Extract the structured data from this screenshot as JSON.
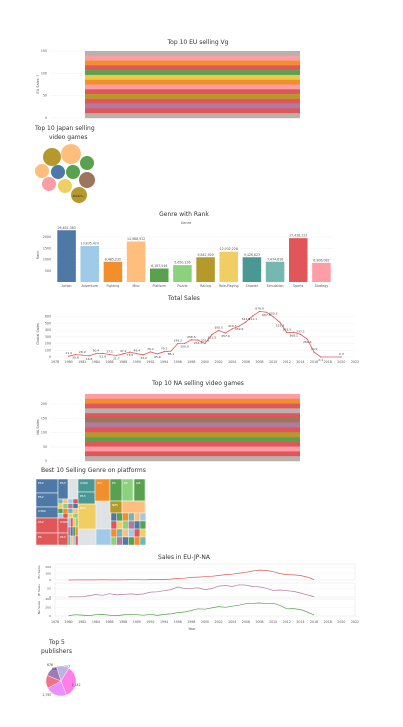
{
  "colors": {
    "blue": "#4e79a7",
    "orange": "#f28e2b",
    "red": "#e15759",
    "teal": "#76b7b2",
    "green": "#59a14f",
    "yellow": "#edc948",
    "purple": "#b07aa1",
    "pink": "#ff9da7",
    "brown": "#9c755f",
    "gray": "#bab0ac",
    "lightblue": "#a0cbe8",
    "lightorange": "#ffbe7d",
    "olive": "#b6992d",
    "lightgreen": "#8cd17d",
    "gold": "#f1ce63",
    "darkteal": "#499894"
  },
  "eu_chart": {
    "title": "Top 10 EU selling Vg",
    "ylabel": "EU Sales ↑",
    "ticks": [
      "150",
      "100",
      "50",
      "0"
    ],
    "stripe_colors": [
      "#bab0ac",
      "#ff9da7",
      "#f28e2b",
      "#e15759",
      "#59a14f",
      "#edc948",
      "#f28e2b",
      "#ff9da7",
      "#e15759",
      "#b6992d",
      "#e15759",
      "#b07aa1",
      "#e15759",
      "#bab0ac"
    ]
  },
  "japan_chart": {
    "title_line1": "Top 10 Japan selling",
    "title_line2": "video games",
    "bubble_label": "Pokém..."
  },
  "chart_data": [
    {
      "type": "bar",
      "title": "Genre with Rank",
      "subtitle": "Genre",
      "ylabel": "Rank",
      "ylim": [
        0,
        2400
      ],
      "ticks": [
        "2000",
        "1500",
        "1000",
        "500"
      ],
      "categories": [
        "Action",
        "Adventure",
        "Fighting",
        "Misc",
        "Platform",
        "Puzzle",
        "Racing",
        "Role-Playing",
        "Shooter",
        "Simulation",
        "Sports",
        "Strategy"
      ],
      "values": [
        2300,
        1600,
        900,
        1800,
        600,
        750,
        1100,
        1350,
        1100,
        900,
        1950,
        850
      ],
      "value_labels": [
        "26,461,360",
        "13,835,424",
        "6,485,232",
        "14,988,912",
        "6,187,546",
        "5,650,136",
        "9,842,920",
        "12,032,228",
        "9,426,823",
        "7,474,616",
        "17,428,122",
        "6,906,082"
      ],
      "colors": [
        "#4e79a7",
        "#a0cbe8",
        "#f28e2b",
        "#ffbe7d",
        "#59a14f",
        "#8cd17d",
        "#b6992d",
        "#f1ce63",
        "#499894",
        "#76b7b2",
        "#e15759",
        "#ff9da7"
      ]
    },
    {
      "type": "line",
      "title": "Total Sales",
      "ylabel": "Global Sales",
      "xlabel": "",
      "ylim": [
        0,
        700
      ],
      "yticks": [
        "600",
        "500",
        "400",
        "300",
        "200",
        "100",
        "0"
      ],
      "xticks": [
        "1978",
        "1980",
        "1982",
        "1984",
        "1986",
        "1988",
        "1990",
        "1992",
        "1994",
        "1996",
        "1998",
        "2000",
        "2002",
        "2004",
        "2006",
        "2008",
        "2010",
        "2012",
        "2014",
        "2016",
        "2018",
        "2020",
        "2022"
      ],
      "x": [
        1980,
        1981,
        1982,
        1983,
        1984,
        1985,
        1986,
        1987,
        1988,
        1989,
        1990,
        1991,
        1992,
        1993,
        1994,
        1995,
        1996,
        1997,
        1998,
        1999,
        2000,
        2001,
        2002,
        2003,
        2004,
        2005,
        2006,
        2007,
        2008,
        2009,
        2010,
        2011,
        2012,
        2013,
        2014,
        2015,
        2016,
        2017,
        2020
      ],
      "y": [
        11.4,
        35.8,
        28.9,
        16.8,
        50.4,
        53.9,
        37.1,
        21.7,
        47.2,
        73.5,
        49.4,
        32.2,
        76.2,
        45.6,
        79.2,
        88.1,
        199.2,
        200.9,
        256.5,
        251.3,
        201.6,
        331.5,
        395.5,
        357.9,
        419.3,
        459.9,
        521.5,
        611.1,
        678.9,
        667.3,
        600.3,
        515.9,
        363.5,
        368.1,
        337.1,
        264.4,
        70.9,
        0.1,
        0.3
      ],
      "labels": [
        "11.4",
        "35.8",
        "28.9",
        "16.8",
        "50.4",
        "53.9",
        "37.1",
        "21.7",
        "47.2",
        "73.5",
        "49.4",
        "32.2",
        "76.2",
        "45.6",
        "79.2",
        "88.1",
        "199.2",
        "200.9",
        "256.5",
        "251.3",
        "201.6",
        "331.5",
        "395.5",
        "357.9",
        "419.3",
        "459.9",
        "521.5",
        "611.1",
        "678.9",
        "667.3",
        "600.3",
        "515.9",
        "363.5",
        "368.1",
        "337.1",
        "264.4",
        "70.9",
        "0.1",
        "0.3"
      ],
      "color": "#e15759"
    },
    {
      "type": "bar",
      "title": "Top 10 NA selling video games",
      "ylabel": "NA Sales",
      "ticks": [
        "200",
        "150",
        "100",
        "50",
        "0"
      ]
    },
    {
      "type": "line",
      "title": "Sales in EU-JP-NA",
      "xlabel": "Year",
      "xticks": [
        "1978",
        "1980",
        "1982",
        "1984",
        "1986",
        "1988",
        "1990",
        "1992",
        "1994",
        "1996",
        "1998",
        "2000",
        "2002",
        "2004",
        "2006",
        "2008",
        "2010",
        "2012",
        "2014",
        "2016",
        "2018",
        "2020",
        "2022"
      ],
      "series": [
        {
          "name": "EU Sales",
          "color": "#e15759",
          "y": [
            0.5,
            2,
            1,
            1,
            2,
            4,
            2,
            1,
            3,
            5,
            4,
            3,
            6,
            7,
            9,
            14,
            25,
            28,
            40,
            45,
            52,
            58,
            70,
            85,
            90,
            108,
            120,
            140,
            155,
            150,
            130,
            100,
            85,
            80,
            70,
            45,
            6
          ]
        },
        {
          "name": "JP Sales",
          "color": "#b07aa1",
          "y": [
            0.4,
            1,
            1,
            8,
            14,
            10,
            19,
            12,
            15,
            18,
            14,
            18,
            28,
            30,
            36,
            42,
            57,
            48,
            50,
            52,
            42,
            48,
            62,
            66,
            60,
            70,
            68,
            60,
            58,
            50,
            38,
            40,
            36,
            32,
            23,
            12,
            2
          ]
        },
        {
          "name": "NA Sales",
          "color": "#59a14f",
          "y": [
            10,
            30,
            20,
            10,
            30,
            35,
            18,
            10,
            25,
            40,
            30,
            18,
            40,
            15,
            38,
            50,
            80,
            95,
            130,
            170,
            160,
            190,
            220,
            205,
            230,
            255,
            290,
            300,
            305,
            290,
            300,
            250,
            170,
            175,
            150,
            95,
            20
          ]
        }
      ],
      "ticks": {
        "EU Sales": [
          "200",
          "100",
          "0"
        ],
        "JP Sales": [
          "50",
          "0"
        ],
        "NA Sales": [
          "400",
          "200",
          "0"
        ]
      }
    },
    {
      "type": "pie",
      "title_line1": "Top 5",
      "title_line2": "publishers",
      "values": [
        1767,
        1142,
        707,
        697,
        676
      ],
      "labels": [
        "1,767",
        "1,142",
        "707",
        "697",
        "676"
      ],
      "colors": [
        "#ff7ee8",
        "#e98fff",
        "#f1738a",
        "#9d7cb8",
        "#bcb4e0"
      ]
    }
  ],
  "treemap": {
    "title": "Best 10 Selling Genre on platforms",
    "cells": [
      {
        "l": "PS2",
        "c": "#4e79a7"
      },
      {
        "l": "PS2",
        "c": "#4e79a7"
      },
      {
        "l": "X360",
        "c": "#4e79a7"
      },
      {
        "l": "PS3",
        "c": "#4e79a7"
      },
      {
        "l": "PS2",
        "c": "#e15759"
      },
      {
        "l": "X360",
        "c": "#e15759"
      },
      {
        "l": "PS",
        "c": "#e15759"
      },
      {
        "l": "PS3",
        "c": "#e15759"
      },
      {
        "l": "X360",
        "c": "#499894"
      },
      {
        "l": "PS3",
        "c": "#499894"
      },
      {
        "l": "Wii",
        "c": "#f28e2b"
      },
      {
        "l": "PS2",
        "c": "#f1ce63"
      },
      {
        "l": "PS",
        "c": "#59a14f"
      },
      {
        "l": "NES",
        "c": "#b6992d"
      },
      {
        "l": "PS",
        "c": "#8cd17d"
      },
      {
        "l": "GB",
        "c": "#59a14f"
      },
      {
        "l": "",
        "c": "#a0cbe8"
      },
      {
        "l": "",
        "c": "#ffbe7d"
      }
    ]
  },
  "na_stripes": [
    "#ff9da7",
    "#f28e2b",
    "#e15759",
    "#bab0ac",
    "#e15759",
    "#9c755f",
    "#b07aa1",
    "#e15759",
    "#b6992d",
    "#59a14f",
    "#e15759",
    "#ff9da7",
    "#e15759",
    "#bab0ac"
  ],
  "footer": {
    "year_label": "Year"
  }
}
